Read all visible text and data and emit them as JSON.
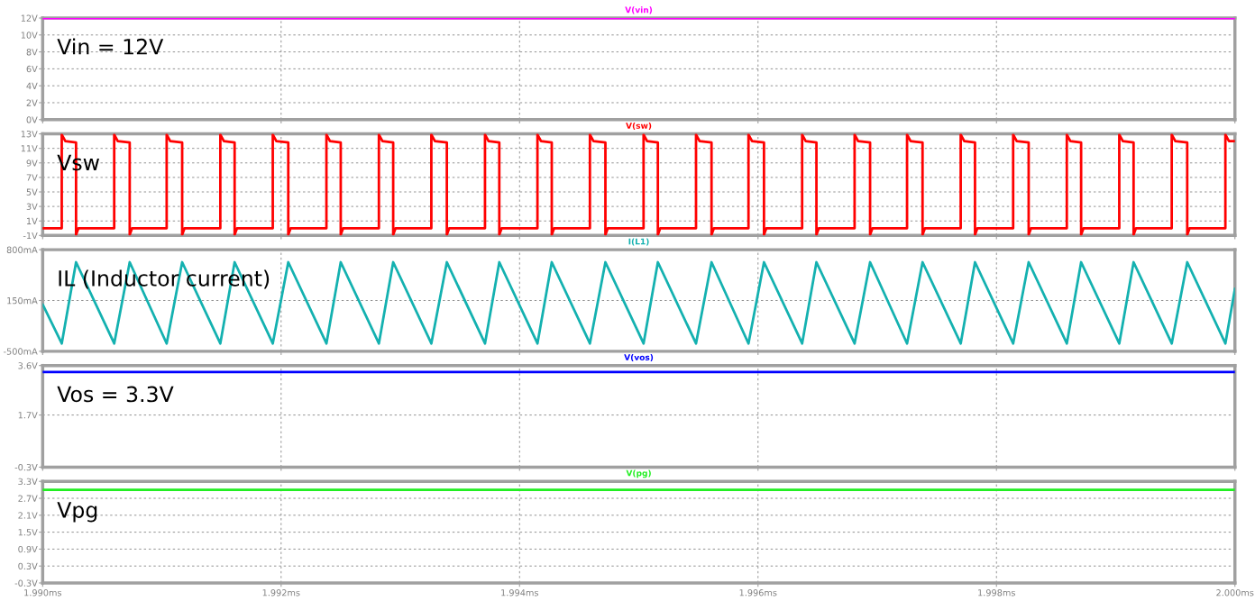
{
  "chart_data": [
    {
      "type": "line",
      "annotations": [
        "Vin = 12V"
      ],
      "xlim": [
        1.99,
        2.0
      ],
      "xticks": [
        {
          "value": 1.99,
          "label": null
        },
        {
          "value": 1.992,
          "label": null
        },
        {
          "value": 1.994,
          "label": null
        },
        {
          "value": 1.996,
          "label": null
        },
        {
          "value": 1.998,
          "label": null
        },
        {
          "value": 2.0,
          "label": null
        }
      ],
      "ylim": [
        0,
        12
      ],
      "yticks": [
        {
          "value": 0,
          "label": "0V"
        },
        {
          "value": 2,
          "label": "2V"
        },
        {
          "value": 4,
          "label": "4V"
        },
        {
          "value": 6,
          "label": "6V"
        },
        {
          "value": 8,
          "label": "8V"
        },
        {
          "value": 10,
          "label": "10V"
        },
        {
          "value": 12,
          "label": "12V"
        }
      ],
      "grid": true,
      "tick_labels": "y",
      "series": [
        {
          "name": "V(vin)",
          "color": "#ff00ff",
          "x": [
            1.99,
            2.0
          ],
          "values": [
            12,
            12
          ]
        }
      ]
    },
    {
      "type": "line",
      "annotations": [
        "Vsw"
      ],
      "xlim": [
        1.99,
        2.0
      ],
      "xticks": [
        {
          "value": 1.99,
          "label": null
        },
        {
          "value": 1.992,
          "label": null
        },
        {
          "value": 1.994,
          "label": null
        },
        {
          "value": 1.996,
          "label": null
        },
        {
          "value": 1.998,
          "label": null
        },
        {
          "value": 2.0,
          "label": null
        }
      ],
      "ylim": [
        -1,
        13
      ],
      "yticks": [
        {
          "value": -1,
          "label": "-1V"
        },
        {
          "value": 1,
          "label": "1V"
        },
        {
          "value": 3,
          "label": "3V"
        },
        {
          "value": 5,
          "label": "5V"
        },
        {
          "value": 7,
          "label": "7V"
        },
        {
          "value": 9,
          "label": "9V"
        },
        {
          "value": 11,
          "label": "11V"
        },
        {
          "value": 13,
          "label": "13V"
        }
      ],
      "grid": true,
      "tick_labels": "y",
      "series": [
        {
          "name": "V(sw)",
          "color": "#ff0000",
          "x": [
            1.99,
            1.99016,
            1.99016,
            1.99019,
            1.99028,
            1.99028,
            1.9903,
            1.9906,
            1.9906,
            1.99063,
            1.99073,
            1.99073,
            1.99075,
            1.99104,
            1.99104,
            1.99107,
            1.99117,
            1.99117,
            1.99119,
            1.99149,
            1.99149,
            1.99152,
            1.99161,
            1.99161,
            1.99163,
            1.99193,
            1.99193,
            1.99196,
            1.99206,
            1.99206,
            1.99208,
            1.99238,
            1.99238,
            1.99241,
            1.9925,
            1.9925,
            1.99252,
            1.99282,
            1.99282,
            1.99285,
            1.99294,
            1.99294,
            1.99296,
            1.99326,
            1.99326,
            1.99329,
            1.99339,
            1.99339,
            1.99341,
            1.99371,
            1.99371,
            1.99374,
            1.99383,
            1.99383,
            1.99385,
            1.99415,
            1.99415,
            1.99418,
            1.99427,
            1.99427,
            1.99429,
            1.99459,
            1.99459,
            1.99462,
            1.99472,
            1.99472,
            1.99474,
            1.99504,
            1.99504,
            1.99507,
            1.99516,
            1.99516,
            1.99518,
            1.99548,
            1.99548,
            1.99551,
            1.99561,
            1.99561,
            1.99563,
            1.99592,
            1.99592,
            1.99595,
            1.99605,
            1.99605,
            1.99607,
            1.99637,
            1.99637,
            1.9964,
            1.99649,
            1.99649,
            1.99651,
            1.99681,
            1.99681,
            1.99684,
            1.99694,
            1.99694,
            1.99696,
            1.99725,
            1.99725,
            1.99728,
            1.99738,
            1.99738,
            1.9974,
            1.9977,
            1.9977,
            1.99773,
            1.99782,
            1.99782,
            1.99784,
            1.99814,
            1.99814,
            1.99817,
            1.99827,
            1.99827,
            1.99829,
            1.99859,
            1.99859,
            1.99862,
            1.99871,
            1.99871,
            1.99873,
            1.99903,
            1.99903,
            1.99906,
            1.99915,
            1.99915,
            1.99917,
            1.99947,
            1.99947,
            1.9995,
            1.9996,
            1.9996,
            1.99962,
            1.99992,
            1.99992,
            1.99995,
            2.0
          ],
          "values": [
            0,
            0,
            12.9,
            12,
            11.8,
            -0.9,
            0,
            0,
            12.9,
            12,
            11.8,
            -0.9,
            0,
            0,
            12.9,
            12,
            11.8,
            -0.9,
            0,
            0,
            12.9,
            12,
            11.8,
            -0.9,
            0,
            0,
            12.9,
            12,
            11.8,
            -0.9,
            0,
            0,
            12.9,
            12,
            11.8,
            -0.9,
            0,
            0,
            12.9,
            12,
            11.8,
            -0.9,
            0,
            0,
            12.9,
            12,
            11.8,
            -0.9,
            0,
            0,
            12.9,
            12,
            11.8,
            -0.9,
            0,
            0,
            12.9,
            12,
            11.8,
            -0.9,
            0,
            0,
            12.9,
            12,
            11.8,
            -0.9,
            0,
            0,
            12.9,
            12,
            11.8,
            -0.9,
            0,
            0,
            12.9,
            12,
            11.8,
            -0.9,
            0,
            0,
            12.9,
            12,
            11.8,
            -0.9,
            0,
            0,
            12.9,
            12,
            11.8,
            -0.9,
            0,
            0,
            12.9,
            12,
            11.8,
            -0.9,
            0,
            0,
            12.9,
            12,
            11.8,
            -0.9,
            0,
            0,
            12.9,
            12,
            11.8,
            -0.9,
            0,
            0,
            12.9,
            12,
            11.8,
            -0.9,
            0,
            0,
            12.9,
            12,
            11.8,
            -0.9,
            0,
            0,
            12.9,
            12,
            11.8,
            -0.9,
            0,
            0,
            12.9,
            12,
            11.8,
            -0.9,
            0,
            0,
            12.9,
            12,
            12
          ]
        }
      ]
    },
    {
      "type": "line",
      "annotations": [
        "IL (Inductor current)"
      ],
      "xlim": [
        1.99,
        2.0
      ],
      "xticks": [
        {
          "value": 1.99,
          "label": null
        },
        {
          "value": 1.992,
          "label": null
        },
        {
          "value": 1.994,
          "label": null
        },
        {
          "value": 1.996,
          "label": null
        },
        {
          "value": 1.998,
          "label": null
        },
        {
          "value": 2.0,
          "label": null
        }
      ],
      "ylim": [
        -500,
        800
      ],
      "yticks": [
        {
          "value": -500,
          "label": "-500mA"
        },
        {
          "value": 150,
          "label": "150mA"
        },
        {
          "value": 800,
          "label": "800mA"
        }
      ],
      "grid": true,
      "tick_labels": "y",
      "series": [
        {
          "name": "I(L1)",
          "color": "#14b1b0",
          "x": [
            1.99,
            1.99016,
            1.99028,
            1.9906,
            1.99073,
            1.99104,
            1.99117,
            1.99149,
            1.99161,
            1.99193,
            1.99206,
            1.99238,
            1.9925,
            1.99282,
            1.99294,
            1.99326,
            1.99339,
            1.99371,
            1.99383,
            1.99415,
            1.99427,
            1.99459,
            1.99472,
            1.99504,
            1.99516,
            1.99548,
            1.99561,
            1.99592,
            1.99605,
            1.99637,
            1.99649,
            1.99681,
            1.99694,
            1.99725,
            1.99738,
            1.9977,
            1.99782,
            1.99814,
            1.99827,
            1.99859,
            1.99871,
            1.99903,
            1.99915,
            1.99947,
            1.9996,
            1.99992,
            2.0
          ],
          "values": [
            100,
            -400,
            640,
            -400,
            640,
            -400,
            640,
            -400,
            640,
            -400,
            640,
            -400,
            640,
            -400,
            640,
            -400,
            640,
            -400,
            640,
            -400,
            640,
            -400,
            640,
            -400,
            640,
            -400,
            640,
            -400,
            640,
            -400,
            640,
            -400,
            640,
            -400,
            640,
            -400,
            640,
            -400,
            640,
            -400,
            640,
            -400,
            640,
            -400,
            640,
            -400,
            300
          ]
        }
      ]
    },
    {
      "type": "line",
      "annotations": [
        "Vos = 3.3V"
      ],
      "xlim": [
        1.99,
        2.0
      ],
      "xticks": [
        {
          "value": 1.99,
          "label": null
        },
        {
          "value": 1.992,
          "label": null
        },
        {
          "value": 1.994,
          "label": null
        },
        {
          "value": 1.996,
          "label": null
        },
        {
          "value": 1.998,
          "label": null
        },
        {
          "value": 2.0,
          "label": null
        }
      ],
      "ylim": [
        -0.3,
        3.6
      ],
      "yticks": [
        {
          "value": -0.3,
          "label": "-0.3V"
        },
        {
          "value": 1.7,
          "label": "1.7V"
        },
        {
          "value": 3.6,
          "label": "3.6V"
        }
      ],
      "grid": true,
      "tick_labels": "y",
      "series": [
        {
          "name": "V(vos)",
          "color": "#0000ff",
          "x": [
            1.99,
            2.0
          ],
          "values": [
            3.35,
            3.35
          ]
        }
      ]
    },
    {
      "type": "line",
      "annotations": [
        "Vpg"
      ],
      "xlim": [
        1.99,
        2.0
      ],
      "xticks": [
        {
          "value": 1.99,
          "label": "1.990ms"
        },
        {
          "value": 1.992,
          "label": "1.992ms"
        },
        {
          "value": 1.994,
          "label": "1.994ms"
        },
        {
          "value": 1.996,
          "label": "1.996ms"
        },
        {
          "value": 1.998,
          "label": "1.998ms"
        },
        {
          "value": 2.0,
          "label": "2.000ms"
        }
      ],
      "ylim": [
        -0.3,
        3.3
      ],
      "yticks": [
        {
          "value": -0.3,
          "label": "-0.3V"
        },
        {
          "value": 0.3,
          "label": "0.3V"
        },
        {
          "value": 0.9,
          "label": "0.9V"
        },
        {
          "value": 1.5,
          "label": "1.5V"
        },
        {
          "value": 2.1,
          "label": "2.1V"
        },
        {
          "value": 2.7,
          "label": "2.7V"
        },
        {
          "value": 3.3,
          "label": "3.3V"
        }
      ],
      "grid": true,
      "series": [
        {
          "name": "V(pg)",
          "color": "#22ee22",
          "x": [
            1.99,
            2.0
          ],
          "values": [
            3.0,
            3.0
          ]
        }
      ]
    }
  ]
}
